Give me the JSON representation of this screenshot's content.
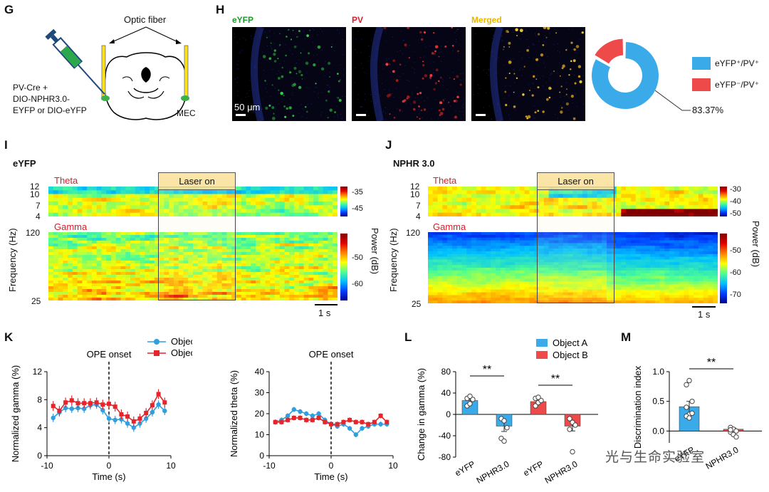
{
  "panels": {
    "G": "G",
    "H": "H",
    "I": "I",
    "J": "J",
    "K": "K",
    "L": "L",
    "M": "M"
  },
  "g": {
    "optic_fiber": "Optic fiber",
    "injection_l1": "PV-Cre +",
    "injection_l2": "DIO-NPHR3.0-",
    "injection_l3": "EYFP or DIO-eYFP",
    "region": "MEC"
  },
  "h": {
    "titles": [
      "eYFP",
      "PV",
      "Merged"
    ],
    "title_colors": [
      "#1a9a2a",
      "#d81e2a",
      "#e8b800"
    ],
    "scale_label": "50 μm",
    "legend": [
      "eYFP⁺/PV⁺",
      "eYFP⁻/PV⁺"
    ],
    "percent_label": "83.37%"
  },
  "i": {
    "title": "eYFP",
    "theta": "Theta",
    "gamma": "Gamma",
    "laser": "Laser on",
    "ylabel": "Frequency (Hz)",
    "theta_ticks": [
      "12",
      "10",
      "7",
      "4"
    ],
    "gamma_ticks": [
      "120",
      "25"
    ],
    "theta_cbar": [
      "-35",
      "-45"
    ],
    "gamma_cbar": [
      "-50",
      "-60"
    ],
    "power_label": "Power (dB)",
    "scale": "1 s"
  },
  "j": {
    "title": "NPHR 3.0",
    "theta": "Theta",
    "gamma": "Gamma",
    "laser": "Laser on",
    "ylabel": "Frequency (Hz)",
    "theta_ticks": [
      "12",
      "10",
      "7",
      "4"
    ],
    "gamma_ticks": [
      "120",
      "25"
    ],
    "theta_cbar": [
      "-30",
      "-40",
      "-50"
    ],
    "gamma_cbar": [
      "-50",
      "-60",
      "-70"
    ],
    "power_label": "Power (dB)",
    "scale": "1 s"
  },
  "watermark": "光与生命实验室",
  "chart_data": [
    {
      "type": "pie",
      "id": "H-donut",
      "categories": [
        "eYFP⁺/PV⁺",
        "eYFP⁻/PV⁺"
      ],
      "values": [
        83.37,
        16.63
      ],
      "colors": [
        "#3aaae8",
        "#ef4a4a"
      ],
      "annotation": "83.37%"
    },
    {
      "type": "line",
      "id": "K-gamma",
      "title": "OPE onset",
      "xlabel": "Time (s)",
      "ylabel": "Normalized gamma (%)",
      "xlim": [
        -10,
        10
      ],
      "ylim": [
        0,
        12
      ],
      "xticks": [
        "-10",
        "0",
        "10"
      ],
      "yticks": [
        "0",
        "4",
        "8",
        "12"
      ],
      "x": [
        -9,
        -8,
        -7,
        -6,
        -5,
        -4,
        -3,
        -2,
        -1,
        0,
        1,
        2,
        3,
        4,
        5,
        6,
        7,
        8,
        9
      ],
      "series": [
        {
          "name": "Object A",
          "color": "#2f9fe0",
          "marker": "circle",
          "values": [
            5.4,
            6.2,
            6.8,
            6.7,
            6.8,
            6.7,
            7.2,
            7.3,
            6.5,
            5.3,
            5.1,
            5.2,
            4.6,
            4.0,
            4.6,
            5.3,
            6.2,
            7.3,
            6.4
          ],
          "err": 0.6
        },
        {
          "name": "Object B",
          "color": "#e5242b",
          "marker": "square",
          "values": [
            7.1,
            6.4,
            7.6,
            7.9,
            7.5,
            7.5,
            7.5,
            7.6,
            7.3,
            7.4,
            7.0,
            5.9,
            5.6,
            4.9,
            5.3,
            6.1,
            7.2,
            8.8,
            7.6
          ],
          "err": 0.7
        }
      ],
      "legend": [
        "Object A",
        "Object B"
      ]
    },
    {
      "type": "line",
      "id": "K-theta",
      "title": "OPE onset",
      "xlabel": "Time (s)",
      "ylabel": "Normalized theta (%)",
      "xlim": [
        -10,
        10
      ],
      "ylim": [
        0,
        40
      ],
      "xticks": [
        "-10",
        "0",
        "10"
      ],
      "yticks": [
        "0",
        "10",
        "20",
        "30",
        "40"
      ],
      "x": [
        -9,
        -8,
        -7,
        -6,
        -5,
        -4,
        -3,
        -2,
        -1,
        0,
        1,
        2,
        3,
        4,
        5,
        6,
        7,
        8,
        9
      ],
      "series": [
        {
          "name": "Object A",
          "color": "#2f9fe0",
          "marker": "circle",
          "values": [
            16,
            17,
            19,
            22,
            21,
            20,
            19,
            20,
            17,
            15,
            14,
            15,
            13,
            10,
            13,
            14,
            15,
            15,
            15
          ],
          "err": 1.2
        },
        {
          "name": "Object B",
          "color": "#e5242b",
          "marker": "square",
          "values": [
            16,
            16,
            17,
            18,
            18,
            17,
            17,
            18,
            16,
            15,
            15,
            16,
            17,
            16,
            16,
            15,
            16,
            19,
            16
          ],
          "err": 1.2
        }
      ]
    },
    {
      "type": "bar",
      "id": "L",
      "ylabel": "Change in gamma (%)",
      "ylim": [
        -80,
        80
      ],
      "yticks": [
        "80",
        "40",
        "0",
        "-40",
        "-80"
      ],
      "categories": [
        "eYFP",
        "NPHR3.0",
        "eYFP",
        "NPHR3.0"
      ],
      "groups": [
        "Object A",
        "Object A",
        "Object B",
        "Object B"
      ],
      "colors": [
        "#3aaae8",
        "#3aaae8",
        "#ef4a4a",
        "#ef4a4a"
      ],
      "values": [
        26,
        -22,
        24,
        -22
      ],
      "errors": [
        6,
        10,
        6,
        9
      ],
      "points": [
        [
          16,
          20,
          28,
          30,
          34
        ],
        [
          -8,
          -12,
          -25,
          -45,
          -50
        ],
        [
          16,
          22,
          26,
          30,
          32
        ],
        [
          -8,
          -15,
          -20,
          -28,
          -70
        ]
      ],
      "significance": [
        "**",
        "**"
      ],
      "legend": [
        "Object A",
        "Object B"
      ]
    },
    {
      "type": "bar",
      "id": "M",
      "ylabel": "Discrimination index",
      "ylim": [
        -0.2,
        1.0
      ],
      "yticks": [
        "1.0",
        "0.5",
        "0.0"
      ],
      "categories": [
        "eYFP",
        "NPHR3.0"
      ],
      "colors": [
        "#3aaae8",
        "#ef4a4a"
      ],
      "values": [
        0.41,
        0.03
      ],
      "errors": [
        0.09,
        0.02
      ],
      "points": [
        [
          0.78,
          0.85,
          0.5,
          0.4,
          0.28,
          0.3,
          0.25,
          0.22
        ],
        [
          0.06,
          0.03,
          0.0,
          -0.02,
          -0.06,
          -0.1,
          0.02
        ]
      ],
      "significance": [
        "**"
      ]
    }
  ]
}
